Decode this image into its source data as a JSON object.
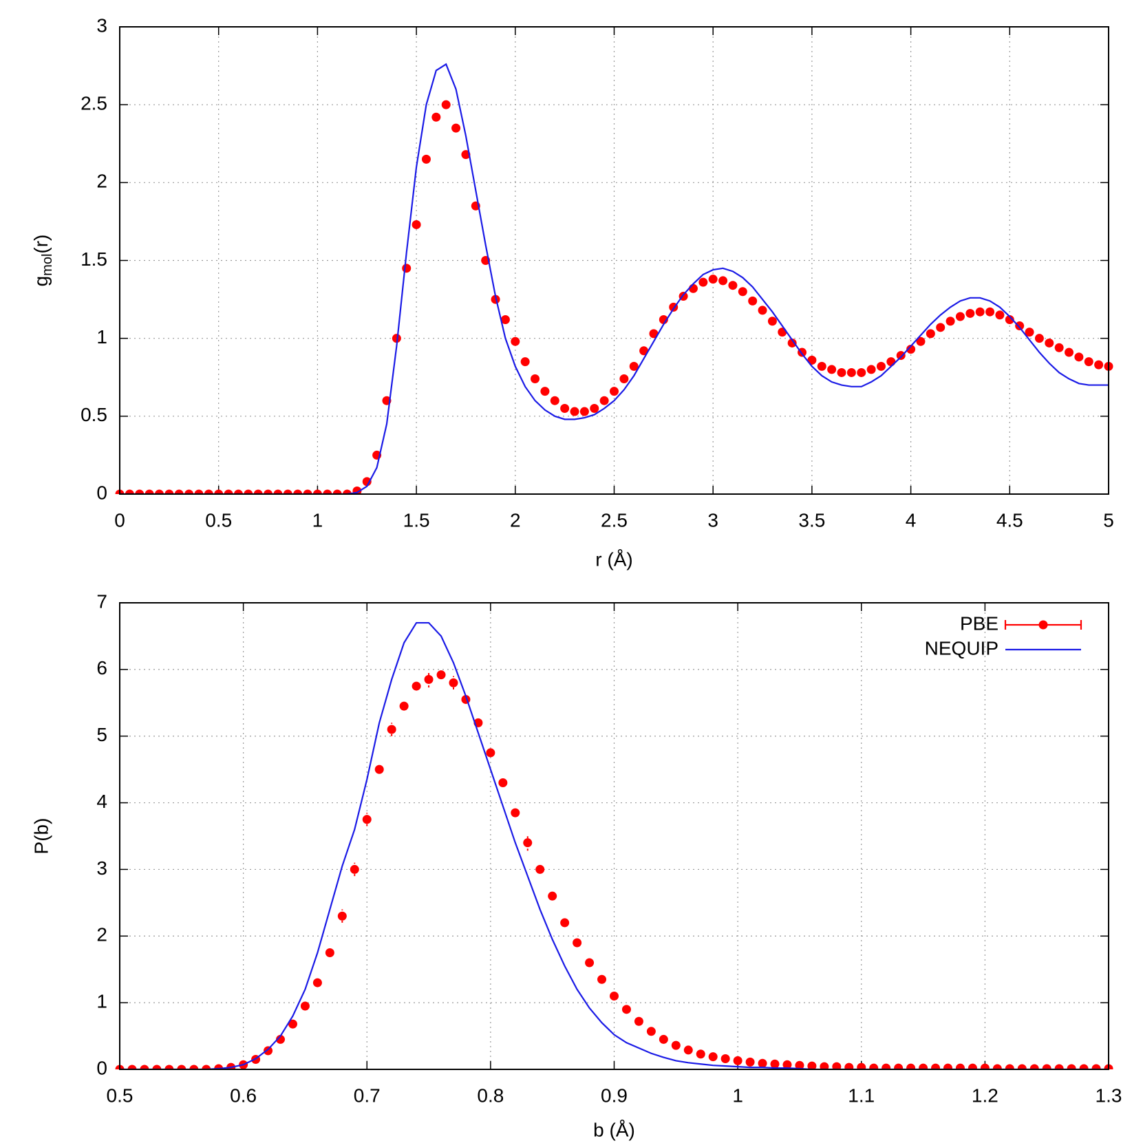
{
  "chart_data": [
    {
      "type": "line",
      "xlabel": "r (Å)",
      "ylabel_parts": [
        "g",
        "mol",
        "(r)"
      ],
      "xlim": [
        0,
        5
      ],
      "ylim": [
        0,
        3
      ],
      "xticks": [
        0,
        0.5,
        1,
        1.5,
        2,
        2.5,
        3,
        3.5,
        4,
        4.5,
        5
      ],
      "yticks": [
        0,
        0.5,
        1,
        1.5,
        2,
        2.5,
        3
      ],
      "grid": true,
      "x": [
        0,
        0.05,
        0.1,
        0.15,
        0.2,
        0.25,
        0.3,
        0.35,
        0.4,
        0.45,
        0.5,
        0.55,
        0.6,
        0.65,
        0.7,
        0.75,
        0.8,
        0.85,
        0.9,
        0.95,
        1,
        1.05,
        1.1,
        1.15,
        1.2,
        1.25,
        1.3,
        1.35,
        1.4,
        1.45,
        1.5,
        1.55,
        1.6,
        1.65,
        1.7,
        1.75,
        1.8,
        1.85,
        1.9,
        1.95,
        2,
        2.05,
        2.1,
        2.15,
        2.2,
        2.25,
        2.3,
        2.35,
        2.4,
        2.45,
        2.5,
        2.55,
        2.6,
        2.65,
        2.7,
        2.75,
        2.8,
        2.85,
        2.9,
        2.95,
        3,
        3.05,
        3.1,
        3.15,
        3.2,
        3.25,
        3.3,
        3.35,
        3.4,
        3.45,
        3.5,
        3.55,
        3.6,
        3.65,
        3.7,
        3.75,
        3.8,
        3.85,
        3.9,
        3.95,
        4,
        4.05,
        4.1,
        4.15,
        4.2,
        4.25,
        4.3,
        4.35,
        4.4,
        4.45,
        4.5,
        4.55,
        4.6,
        4.65,
        4.7,
        4.75,
        4.8,
        4.85,
        4.9,
        4.95,
        5
      ],
      "series": [
        {
          "mode": "markers",
          "color": "#ff0000",
          "values": [
            0,
            0,
            0,
            0,
            0,
            0,
            0,
            0,
            0,
            0,
            0,
            0,
            0,
            0,
            0,
            0,
            0,
            0,
            0,
            0,
            0,
            0,
            0,
            0,
            0.02,
            0.08,
            0.25,
            0.6,
            1.0,
            1.45,
            1.73,
            2.15,
            2.42,
            2.5,
            2.35,
            2.18,
            1.85,
            1.5,
            1.25,
            1.12,
            0.98,
            0.85,
            0.74,
            0.66,
            0.6,
            0.55,
            0.53,
            0.53,
            0.55,
            0.6,
            0.66,
            0.74,
            0.82,
            0.92,
            1.03,
            1.12,
            1.2,
            1.27,
            1.32,
            1.36,
            1.38,
            1.37,
            1.34,
            1.3,
            1.24,
            1.18,
            1.11,
            1.04,
            0.97,
            0.91,
            0.86,
            0.82,
            0.8,
            0.78,
            0.78,
            0.78,
            0.8,
            0.82,
            0.85,
            0.89,
            0.93,
            0.98,
            1.03,
            1.07,
            1.11,
            1.14,
            1.16,
            1.17,
            1.17,
            1.15,
            1.12,
            1.08,
            1.04,
            1.0,
            0.97,
            0.94,
            0.91,
            0.88,
            0.85,
            0.83,
            0.82
          ]
        },
        {
          "mode": "line",
          "color": "#1a1ae6",
          "values": [
            0,
            0,
            0,
            0,
            0,
            0,
            0,
            0,
            0,
            0,
            0,
            0,
            0,
            0,
            0,
            0,
            0,
            0,
            0,
            0,
            0,
            0,
            0,
            0,
            0.01,
            0.05,
            0.17,
            0.45,
            0.95,
            1.55,
            2.1,
            2.5,
            2.72,
            2.76,
            2.6,
            2.3,
            1.95,
            1.6,
            1.27,
            1.0,
            0.82,
            0.69,
            0.6,
            0.54,
            0.5,
            0.48,
            0.48,
            0.49,
            0.51,
            0.55,
            0.6,
            0.67,
            0.76,
            0.87,
            0.98,
            1.09,
            1.19,
            1.28,
            1.35,
            1.41,
            1.44,
            1.45,
            1.43,
            1.39,
            1.33,
            1.25,
            1.17,
            1.08,
            0.99,
            0.9,
            0.82,
            0.76,
            0.72,
            0.7,
            0.69,
            0.69,
            0.72,
            0.76,
            0.82,
            0.88,
            0.95,
            1.02,
            1.09,
            1.15,
            1.2,
            1.24,
            1.26,
            1.26,
            1.24,
            1.2,
            1.14,
            1.07,
            0.99,
            0.91,
            0.84,
            0.78,
            0.74,
            0.71,
            0.7,
            0.7,
            0.7
          ]
        }
      ]
    },
    {
      "type": "line",
      "xlabel": "b (Å)",
      "ylabel": "P(b)",
      "xlim": [
        0.5,
        1.3
      ],
      "ylim": [
        0,
        7
      ],
      "xticks": [
        0.5,
        0.6,
        0.7,
        0.8,
        0.9,
        1,
        1.1,
        1.2,
        1.3
      ],
      "yticks": [
        0,
        1,
        2,
        3,
        4,
        5,
        6,
        7
      ],
      "grid": true,
      "legend": "upper right",
      "x": [
        0.5,
        0.51,
        0.52,
        0.53,
        0.54,
        0.55,
        0.56,
        0.57,
        0.58,
        0.59,
        0.6,
        0.61,
        0.62,
        0.63,
        0.64,
        0.65,
        0.66,
        0.67,
        0.68,
        0.69,
        0.7,
        0.71,
        0.72,
        0.73,
        0.74,
        0.75,
        0.76,
        0.77,
        0.78,
        0.79,
        0.8,
        0.81,
        0.82,
        0.83,
        0.84,
        0.85,
        0.86,
        0.87,
        0.88,
        0.89,
        0.9,
        0.91,
        0.92,
        0.93,
        0.94,
        0.95,
        0.96,
        0.97,
        0.98,
        0.99,
        1,
        1.01,
        1.02,
        1.03,
        1.04,
        1.05,
        1.06,
        1.07,
        1.08,
        1.09,
        1.1,
        1.11,
        1.12,
        1.13,
        1.14,
        1.15,
        1.16,
        1.17,
        1.18,
        1.19,
        1.2,
        1.21,
        1.22,
        1.23,
        1.24,
        1.25,
        1.26,
        1.27,
        1.28,
        1.29,
        1.3
      ],
      "series": [
        {
          "name": "PBE",
          "mode": "markers",
          "color": "#ff0000",
          "values": [
            0,
            0,
            0,
            0,
            0,
            0,
            0,
            0,
            0.01,
            0.03,
            0.07,
            0.15,
            0.28,
            0.45,
            0.68,
            0.95,
            1.3,
            1.75,
            2.3,
            3.0,
            3.75,
            4.5,
            5.1,
            5.45,
            5.75,
            5.85,
            5.92,
            5.8,
            5.55,
            5.2,
            4.75,
            4.3,
            3.85,
            3.4,
            3.0,
            2.6,
            2.2,
            1.9,
            1.6,
            1.35,
            1.1,
            0.9,
            0.72,
            0.57,
            0.45,
            0.36,
            0.29,
            0.23,
            0.19,
            0.16,
            0.13,
            0.11,
            0.09,
            0.08,
            0.07,
            0.06,
            0.05,
            0.04,
            0.04,
            0.03,
            0.03,
            0.02,
            0.02,
            0.02,
            0.02,
            0.02,
            0.02,
            0.02,
            0.02,
            0.02,
            0.02,
            0.01,
            0.01,
            0.01,
            0.01,
            0.01,
            0.01,
            0.01,
            0.01,
            0.01,
            0.01
          ],
          "errors": [
            0,
            0,
            0,
            0,
            0,
            0,
            0,
            0,
            0,
            0,
            0,
            0,
            0,
            0,
            0,
            0,
            0,
            0,
            0.1,
            0.1,
            0.1,
            0,
            0.1,
            0,
            0,
            0.12,
            0,
            0.1,
            0,
            0,
            0,
            0,
            0,
            0.12,
            0,
            0,
            0,
            0,
            0,
            0,
            0,
            0,
            0,
            0,
            0,
            0,
            0,
            0,
            0,
            0,
            0,
            0,
            0,
            0,
            0,
            0,
            0,
            0,
            0,
            0,
            0,
            0,
            0,
            0,
            0,
            0,
            0,
            0,
            0,
            0,
            0,
            0,
            0,
            0,
            0,
            0,
            0,
            0,
            0,
            0,
            0
          ]
        },
        {
          "name": "NEQUIP",
          "mode": "line",
          "color": "#1a1ae6",
          "values": [
            0,
            0,
            0,
            0,
            0,
            0,
            0,
            0,
            0.01,
            0.03,
            0.07,
            0.16,
            0.3,
            0.5,
            0.8,
            1.2,
            1.75,
            2.4,
            3.05,
            3.6,
            4.35,
            5.2,
            5.85,
            6.4,
            6.7,
            6.7,
            6.5,
            6.1,
            5.6,
            5.05,
            4.5,
            3.95,
            3.4,
            2.9,
            2.4,
            1.95,
            1.55,
            1.2,
            0.92,
            0.7,
            0.52,
            0.4,
            0.32,
            0.24,
            0.18,
            0.13,
            0.1,
            0.08,
            0.06,
            0.05,
            0.04,
            0.03,
            0.03,
            0.02,
            0.02,
            0.01,
            0,
            0,
            0,
            0,
            0,
            0,
            0,
            0,
            0,
            0,
            0,
            0,
            0,
            0,
            0,
            0,
            0,
            0,
            0,
            0,
            0,
            0,
            0,
            0,
            0
          ]
        }
      ]
    }
  ]
}
